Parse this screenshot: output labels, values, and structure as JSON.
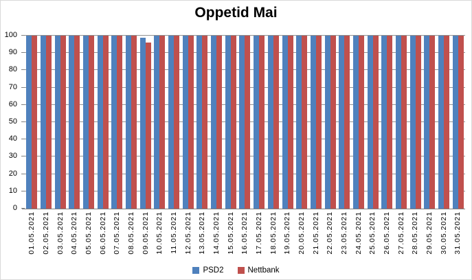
{
  "chart_data": {
    "type": "bar",
    "title": "Oppetid Mai",
    "categories": [
      "01.05.2021",
      "02.05.2021",
      "03.05.2021",
      "04.05.2021",
      "05.05.2021",
      "06.05.2021",
      "07.05.2021",
      "08.05.2021",
      "09.05.2021",
      "10.05.2021",
      "11.05.2021",
      "12.05.2021",
      "13.05.2021",
      "14.05.2021",
      "15.05.2021",
      "16.05.2021",
      "17.05.2021",
      "18.05.2021",
      "19.05.2021",
      "20.05.2021",
      "21.05.2021",
      "22.05.2021",
      "23.05.2021",
      "24.05.2021",
      "25.05.2021",
      "26.05.2021",
      "27.05.2021",
      "28.05.2021",
      "29.05.2021",
      "30.05.2021",
      "31.05.2021"
    ],
    "series": [
      {
        "name": "PSD2",
        "color": "#4F81BD",
        "values": [
          100,
          100,
          100,
          100,
          100,
          100,
          100,
          100,
          99,
          100,
          100,
          100,
          100,
          100,
          100,
          100,
          100,
          100,
          100,
          100,
          100,
          100,
          100,
          100,
          100,
          100,
          100,
          100,
          100,
          100,
          100
        ]
      },
      {
        "name": "Nettbank",
        "color": "#C0504D",
        "values": [
          100,
          100,
          100,
          100,
          100,
          100,
          100,
          100,
          96,
          100,
          100,
          100,
          100,
          100,
          100,
          100,
          100,
          100,
          100,
          100,
          100,
          100,
          100,
          100,
          100,
          100,
          100,
          100,
          100,
          100,
          100
        ]
      }
    ],
    "ylim": [
      0,
      100
    ],
    "ytick_step": 10,
    "yticks": [
      "0",
      "10",
      "20",
      "30",
      "40",
      "50",
      "60",
      "70",
      "80",
      "90",
      "100"
    ],
    "grid": true,
    "legend_position": "bottom",
    "grid_color": "#909090",
    "axis_color": "#7F7F7F"
  }
}
